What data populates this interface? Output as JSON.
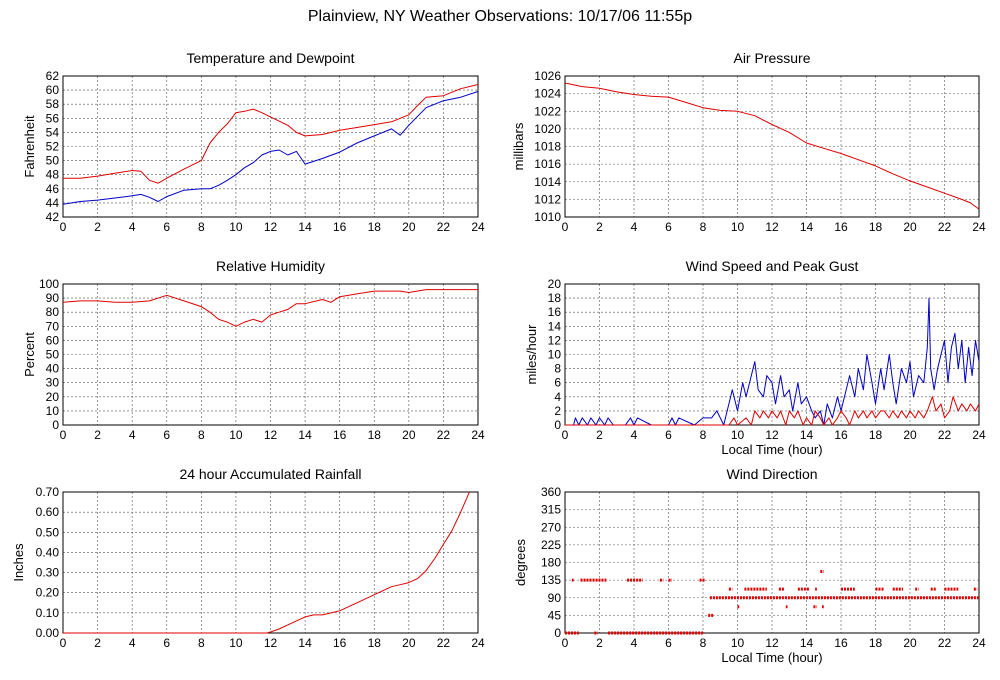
{
  "page_title": "Plainview, NY Weather Observations: 10/17/06 11:55p",
  "chart_data": [
    {
      "id": "temp",
      "type": "line",
      "title": "Temperature and Dewpoint",
      "xlabel": "",
      "ylabel": "Fahrenheit",
      "xlim": [
        0,
        24
      ],
      "ylim": [
        42,
        62
      ],
      "xticks": [
        0,
        2,
        4,
        6,
        8,
        10,
        12,
        14,
        16,
        18,
        20,
        22,
        24
      ],
      "yticks": [
        42,
        44,
        46,
        48,
        50,
        52,
        54,
        56,
        58,
        60,
        62
      ],
      "grid": true,
      "series": [
        {
          "color": "#e00000",
          "x": [
            0,
            1,
            2,
            3,
            4,
            4.5,
            5,
            5.5,
            6,
            7,
            8,
            8.5,
            9,
            9.5,
            10,
            10.5,
            11,
            11.5,
            12,
            13,
            13.5,
            14,
            15,
            16,
            17,
            18,
            19,
            20,
            20.5,
            21,
            22,
            23,
            24
          ],
          "y": [
            47.5,
            47.5,
            47.8,
            48.2,
            48.6,
            48.5,
            47.2,
            46.8,
            47.5,
            48.8,
            50.0,
            52.5,
            54.0,
            55.2,
            56.8,
            57.0,
            57.3,
            56.8,
            56.2,
            55.0,
            54.0,
            53.5,
            53.7,
            54.3,
            54.7,
            55.1,
            55.5,
            56.5,
            57.8,
            59.0,
            59.2,
            60.2,
            60.8
          ]
        },
        {
          "color": "#0000c8",
          "x": [
            0,
            1,
            2,
            3,
            4,
            4.5,
            5,
            5.5,
            6,
            7,
            8,
            8.5,
            9,
            9.5,
            10,
            10.5,
            11,
            11.5,
            12,
            12.5,
            13,
            13.5,
            14,
            15,
            16,
            17,
            18,
            19,
            19.5,
            20,
            21,
            22,
            23,
            24
          ],
          "y": [
            43.8,
            44.2,
            44.4,
            44.7,
            45.0,
            45.2,
            44.8,
            44.2,
            44.9,
            45.8,
            46.0,
            46.0,
            46.5,
            47.2,
            48.0,
            49.0,
            49.7,
            50.8,
            51.3,
            51.5,
            50.8,
            51.3,
            49.5,
            50.3,
            51.2,
            52.5,
            53.5,
            54.5,
            53.6,
            55.0,
            57.5,
            58.5,
            59.0,
            59.8
          ]
        }
      ]
    },
    {
      "id": "pressure",
      "type": "line",
      "title": "Air Pressure",
      "xlabel": "",
      "ylabel": "millibars",
      "xlim": [
        0,
        24
      ],
      "ylim": [
        1010,
        1026
      ],
      "xticks": [
        0,
        2,
        4,
        6,
        8,
        10,
        12,
        14,
        16,
        18,
        20,
        22,
        24
      ],
      "yticks": [
        1010,
        1012,
        1014,
        1016,
        1018,
        1020,
        1022,
        1024,
        1026
      ],
      "grid": true,
      "series": [
        {
          "color": "#e00000",
          "x": [
            0,
            1,
            2,
            3,
            4,
            5,
            6,
            7,
            8,
            9,
            10,
            11,
            12,
            13,
            14,
            15,
            16,
            17,
            18,
            19,
            20,
            21,
            22,
            23,
            23.5,
            24
          ],
          "y": [
            1025.2,
            1024.8,
            1024.6,
            1024.2,
            1023.9,
            1023.7,
            1023.6,
            1023.0,
            1022.4,
            1022.1,
            1022.0,
            1021.5,
            1020.5,
            1019.6,
            1018.4,
            1017.8,
            1017.2,
            1016.5,
            1015.8,
            1014.9,
            1014.1,
            1013.4,
            1012.7,
            1012.0,
            1011.6,
            1010.9
          ]
        }
      ]
    },
    {
      "id": "humidity",
      "type": "line",
      "title": "Relative Humidity",
      "xlabel": "",
      "ylabel": "Percent",
      "xlim": [
        0,
        24
      ],
      "ylim": [
        0,
        100
      ],
      "xticks": [
        0,
        2,
        4,
        6,
        8,
        10,
        12,
        14,
        16,
        18,
        20,
        22,
        24
      ],
      "yticks": [
        0,
        10,
        20,
        30,
        40,
        50,
        60,
        70,
        80,
        90,
        100
      ],
      "grid": true,
      "series": [
        {
          "color": "#e00000",
          "x": [
            0,
            1,
            2,
            3,
            4,
            5,
            6,
            7,
            8,
            8.5,
            9,
            9.5,
            10,
            10.5,
            11,
            11.5,
            12,
            12.5,
            13,
            13.5,
            14,
            15,
            15.5,
            16,
            17,
            18,
            19,
            19.5,
            20,
            21,
            22,
            23,
            24
          ],
          "y": [
            87,
            88,
            88,
            87,
            87,
            88,
            92,
            88,
            84,
            80,
            75,
            73,
            70,
            73,
            75,
            73,
            78,
            80,
            82,
            86,
            86,
            89,
            87,
            91,
            93,
            95,
            95,
            95,
            94,
            96,
            96,
            96,
            96
          ]
        }
      ]
    },
    {
      "id": "wind",
      "type": "line",
      "title": "Wind Speed and Peak Gust",
      "xlabel": "Local Time (hour)",
      "ylabel": "miles/hour",
      "xlim": [
        0,
        24
      ],
      "ylim": [
        0,
        20
      ],
      "xticks": [
        0,
        2,
        4,
        6,
        8,
        10,
        12,
        14,
        16,
        18,
        20,
        22,
        24
      ],
      "yticks": [
        0,
        2,
        4,
        6,
        8,
        10,
        12,
        14,
        16,
        18,
        20
      ],
      "grid": true,
      "series": [
        {
          "color": "#0000c8",
          "x": [
            0,
            0.5,
            0.6,
            0.8,
            1.0,
            1.3,
            1.5,
            1.8,
            2.0,
            2.3,
            2.5,
            2.8,
            3.5,
            3.8,
            4.0,
            4.2,
            5.0,
            6.0,
            6.2,
            6.4,
            6.6,
            7.5,
            8.0,
            8.5,
            8.8,
            9.0,
            9.2,
            9.5,
            9.7,
            10.0,
            10.3,
            10.5,
            10.8,
            11.0,
            11.2,
            11.5,
            11.7,
            12.0,
            12.2,
            12.5,
            12.7,
            13.0,
            13.2,
            13.5,
            13.7,
            14.0,
            14.3,
            14.5,
            14.8,
            15.0,
            15.2,
            15.5,
            15.8,
            16.0,
            16.3,
            16.5,
            16.8,
            17.0,
            17.3,
            17.5,
            17.8,
            18.0,
            18.3,
            18.5,
            18.8,
            19.0,
            19.2,
            19.5,
            19.8,
            20.0,
            20.2,
            20.5,
            20.8,
            21.0,
            21.1,
            21.2,
            21.4,
            21.6,
            21.8,
            22.0,
            22.2,
            22.4,
            22.6,
            22.8,
            23.0,
            23.2,
            23.4,
            23.6,
            23.8,
            24.0
          ],
          "y": [
            0,
            0,
            1,
            0,
            1,
            0,
            1,
            0,
            1,
            0,
            1,
            0,
            0,
            1,
            0,
            1,
            0,
            0,
            1,
            0,
            1,
            0,
            1,
            1,
            2,
            1,
            0,
            3,
            5,
            2,
            6,
            4,
            7,
            9,
            5,
            4,
            7,
            6,
            3,
            7,
            4,
            5,
            2,
            6,
            3,
            4,
            2,
            1,
            2,
            0,
            3,
            1,
            4,
            2,
            5,
            7,
            4,
            8,
            5,
            10,
            6,
            3,
            8,
            5,
            10,
            6,
            3,
            8,
            6,
            9,
            4,
            7,
            6,
            11,
            18,
            8,
            5,
            8,
            10,
            12,
            6,
            11,
            13,
            8,
            12,
            6,
            11,
            7,
            12,
            9
          ]
        },
        {
          "color": "#e00000",
          "x": [
            0,
            9.5,
            9.8,
            10.0,
            10.5,
            10.8,
            11.0,
            11.3,
            11.5,
            11.8,
            12.0,
            12.3,
            12.5,
            12.8,
            13.0,
            13.3,
            13.5,
            13.8,
            14.0,
            14.3,
            14.5,
            14.8,
            15.0,
            15.3,
            15.5,
            15.8,
            16.0,
            16.3,
            16.5,
            16.8,
            17.0,
            17.3,
            17.5,
            17.8,
            18.0,
            18.3,
            18.5,
            18.8,
            19.0,
            19.3,
            19.5,
            19.8,
            20.0,
            20.3,
            20.5,
            20.8,
            21.0,
            21.3,
            21.5,
            21.8,
            22.0,
            22.3,
            22.5,
            22.8,
            23.0,
            23.3,
            23.5,
            23.8,
            24.0
          ],
          "y": [
            0,
            0,
            1,
            0,
            1,
            0,
            2,
            1,
            2,
            1,
            2,
            1,
            2,
            0,
            2,
            1,
            2,
            0,
            1,
            0,
            2,
            1,
            0,
            1,
            0,
            1,
            2,
            1,
            0,
            2,
            1,
            2,
            1,
            2,
            1,
            2,
            2,
            1,
            2,
            1,
            2,
            1,
            2,
            1,
            2,
            1,
            2,
            4,
            2,
            3,
            1,
            2,
            4,
            2,
            3,
            2,
            3,
            2,
            3
          ]
        }
      ]
    },
    {
      "id": "rain",
      "type": "line",
      "title": "24 hour Accumulated Rainfall",
      "xlabel": "",
      "ylabel": "Inches",
      "xlim": [
        0,
        24
      ],
      "ylim": [
        0,
        0.7
      ],
      "xticks": [
        0,
        2,
        4,
        6,
        8,
        10,
        12,
        14,
        16,
        18,
        20,
        22,
        24
      ],
      "yticks": [
        0.0,
        0.1,
        0.2,
        0.3,
        0.4,
        0.5,
        0.6,
        0.7
      ],
      "ytick_labels": [
        "0.00",
        "0.10",
        "0.20",
        "0.30",
        "0.40",
        "0.50",
        "0.60",
        "0.70"
      ],
      "grid": true,
      "series": [
        {
          "color": "#e00000",
          "x": [
            0,
            11.8,
            12.0,
            12.5,
            13.0,
            13.5,
            14.0,
            14.5,
            15.0,
            15.5,
            16.0,
            16.5,
            17.0,
            17.5,
            18.0,
            18.5,
            19.0,
            19.5,
            20.0,
            20.5,
            21.0,
            21.5,
            22.0,
            22.5,
            23.0,
            23.3,
            23.5
          ],
          "y": [
            0,
            0,
            0.005,
            0.02,
            0.04,
            0.06,
            0.08,
            0.09,
            0.09,
            0.1,
            0.11,
            0.13,
            0.15,
            0.17,
            0.19,
            0.21,
            0.23,
            0.24,
            0.25,
            0.27,
            0.31,
            0.37,
            0.44,
            0.51,
            0.6,
            0.66,
            0.7
          ]
        }
      ]
    },
    {
      "id": "direction",
      "type": "scatter",
      "title": "Wind Direction",
      "xlabel": "Local Time (hour)",
      "ylabel": "degrees",
      "xlim": [
        0,
        24
      ],
      "ylim": [
        0,
        360
      ],
      "xticks": [
        0,
        2,
        4,
        6,
        8,
        10,
        12,
        14,
        16,
        18,
        20,
        22,
        24
      ],
      "yticks": [
        0,
        45,
        90,
        135,
        180,
        225,
        270,
        315,
        360
      ],
      "grid": true,
      "segments": [
        {
          "color": "#e00000",
          "y": 0,
          "x_ranges": [
            [
              0,
              0.8
            ],
            [
              1.7,
              1.9
            ],
            [
              2.5,
              8.0
            ]
          ]
        },
        {
          "color": "#e00000",
          "y": 135,
          "x_ranges": [
            [
              0.4,
              0.5
            ],
            [
              0.9,
              2.4
            ],
            [
              3.6,
              4.5
            ],
            [
              5.5,
              5.7
            ],
            [
              6.0,
              6.2
            ],
            [
              7.8,
              8.1
            ]
          ]
        },
        {
          "color": "#e00000",
          "y": 90,
          "x_ranges": [
            [
              8.4,
              24
            ]
          ]
        },
        {
          "color": "#e00000",
          "y": 112,
          "x_ranges": [
            [
              9.5,
              9.7
            ],
            [
              10.4,
              11.7
            ],
            [
              12.4,
              12.7
            ],
            [
              13.5,
              14.2
            ],
            [
              14.5,
              14.6
            ],
            [
              16.0,
              16.8
            ],
            [
              18.0,
              18.5
            ],
            [
              19.0,
              19.6
            ],
            [
              20.3,
              20.5
            ],
            [
              21.2,
              21.5
            ],
            [
              22.0,
              22.8
            ],
            [
              23.7,
              23.9
            ]
          ]
        },
        {
          "color": "#e00000",
          "y": 67,
          "x_ranges": [
            [
              10.0,
              10.1
            ],
            [
              12.8,
              12.9
            ],
            [
              14.4,
              14.6
            ],
            [
              14.9,
              15.0
            ]
          ]
        },
        {
          "color": "#e00000",
          "y": 45,
          "x_ranges": [
            [
              8.3,
              8.6
            ]
          ]
        },
        {
          "color": "#e00000",
          "y": 157,
          "x_ranges": [
            [
              14.8,
              15.0
            ]
          ]
        }
      ]
    }
  ]
}
